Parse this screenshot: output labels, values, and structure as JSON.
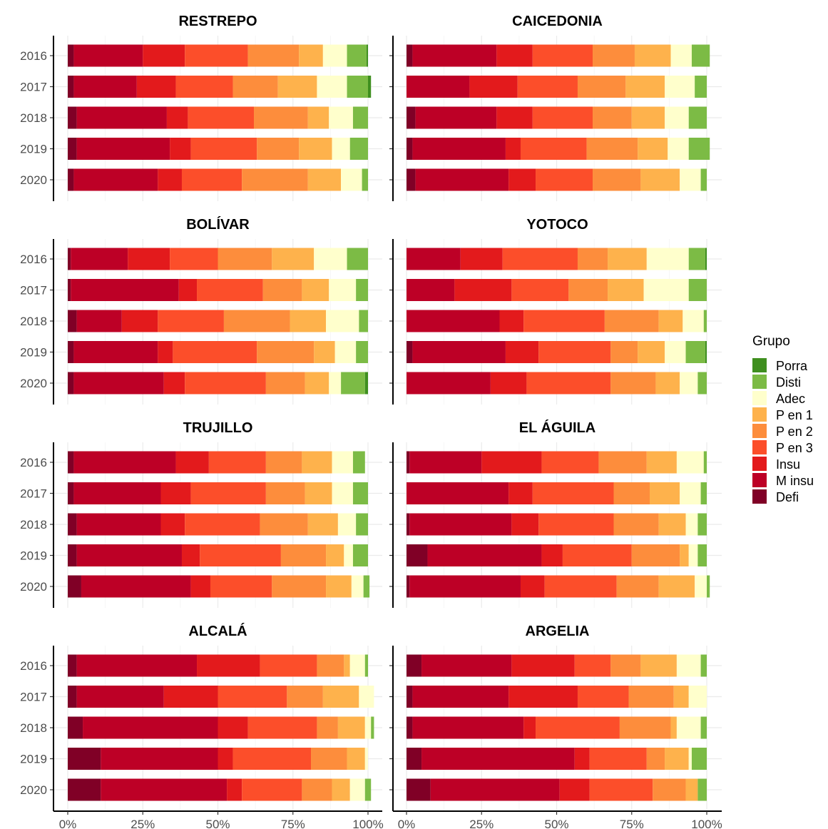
{
  "legend": {
    "title": "Grupo",
    "entries": [
      "Porra",
      "Disti",
      "Adec",
      "P en 1",
      "P en 2",
      "P en 3",
      "Insu",
      "M insu",
      "Defi"
    ]
  },
  "colors": {
    "Defi": "#800026",
    "M insu": "#bd0026",
    "Insu": "#e31a1c",
    "P en 3": "#fc4e2a",
    "P en 2": "#fd8d3c",
    "P en 1": "#feb24c",
    "Adec": "#ffffcc",
    "Disti": "#7cbb45",
    "Porra": "#3f8f1f"
  },
  "chart_data": {
    "type": "bar",
    "orientation": "horizontal",
    "stacked": true,
    "facet_layout": "4 rows x 2 columns",
    "xlim": [
      0,
      1
    ],
    "x_ticks": [
      0,
      0.25,
      0.5,
      0.75,
      1
    ],
    "x_tick_labels": [
      "0%",
      "25%",
      "50%",
      "75%",
      "100%"
    ],
    "categories": [
      "2016",
      "2017",
      "2018",
      "2019",
      "2020"
    ],
    "stack_order": [
      "Defi",
      "M insu",
      "Insu",
      "P en 3",
      "P en 2",
      "P en 1",
      "Adec",
      "Disti",
      "Porra"
    ],
    "grid": true,
    "legend_position": "right",
    "facets": [
      {
        "title": "RESTREPO",
        "rows": [
          {
            "year": "2016",
            "values": [
              0.02,
              0.23,
              0.14,
              0.21,
              0.17,
              0.08,
              0.08,
              0.065,
              0.005
            ]
          },
          {
            "year": "2017",
            "values": [
              0.02,
              0.21,
              0.13,
              0.19,
              0.15,
              0.13,
              0.1,
              0.07,
              0.01
            ]
          },
          {
            "year": "2018",
            "values": [
              0.03,
              0.3,
              0.07,
              0.22,
              0.18,
              0.07,
              0.08,
              0.05,
              0.0
            ]
          },
          {
            "year": "2019",
            "values": [
              0.03,
              0.31,
              0.07,
              0.22,
              0.14,
              0.11,
              0.06,
              0.06,
              0.0
            ]
          },
          {
            "year": "2020",
            "values": [
              0.02,
              0.28,
              0.08,
              0.2,
              0.22,
              0.11,
              0.07,
              0.02,
              0.0
            ]
          }
        ]
      },
      {
        "title": "CAICEDONIA",
        "rows": [
          {
            "year": "2016",
            "values": [
              0.02,
              0.28,
              0.12,
              0.2,
              0.14,
              0.12,
              0.07,
              0.06,
              0.0
            ]
          },
          {
            "year": "2017",
            "values": [
              0.0,
              0.21,
              0.16,
              0.2,
              0.16,
              0.13,
              0.1,
              0.04,
              0.0
            ]
          },
          {
            "year": "2018",
            "values": [
              0.03,
              0.27,
              0.12,
              0.2,
              0.13,
              0.11,
              0.08,
              0.06,
              0.0
            ]
          },
          {
            "year": "2019",
            "values": [
              0.02,
              0.31,
              0.05,
              0.22,
              0.17,
              0.1,
              0.07,
              0.07,
              0.0
            ]
          },
          {
            "year": "2020",
            "values": [
              0.03,
              0.31,
              0.09,
              0.19,
              0.16,
              0.13,
              0.07,
              0.02,
              0.0
            ]
          }
        ]
      },
      {
        "title": "BOLÍVAR",
        "rows": [
          {
            "year": "2016",
            "values": [
              0.01,
              0.19,
              0.14,
              0.16,
              0.18,
              0.14,
              0.11,
              0.07,
              0.0
            ]
          },
          {
            "year": "2017",
            "values": [
              0.01,
              0.36,
              0.06,
              0.22,
              0.13,
              0.09,
              0.09,
              0.04,
              0.0
            ]
          },
          {
            "year": "2018",
            "values": [
              0.03,
              0.15,
              0.12,
              0.22,
              0.22,
              0.12,
              0.11,
              0.03,
              0.0
            ]
          },
          {
            "year": "2019",
            "values": [
              0.02,
              0.28,
              0.05,
              0.28,
              0.19,
              0.07,
              0.07,
              0.04,
              0.0
            ]
          },
          {
            "year": "2020",
            "values": [
              0.02,
              0.3,
              0.07,
              0.27,
              0.13,
              0.08,
              0.04,
              0.08,
              0.01
            ]
          }
        ]
      },
      {
        "title": "YOTOCO",
        "rows": [
          {
            "year": "2016",
            "values": [
              0.0,
              0.18,
              0.14,
              0.25,
              0.1,
              0.13,
              0.14,
              0.055,
              0.005
            ]
          },
          {
            "year": "2017",
            "values": [
              0.0,
              0.16,
              0.19,
              0.19,
              0.13,
              0.12,
              0.15,
              0.06,
              0.0
            ]
          },
          {
            "year": "2018",
            "values": [
              0.0,
              0.31,
              0.08,
              0.27,
              0.18,
              0.08,
              0.07,
              0.01,
              0.0
            ]
          },
          {
            "year": "2019",
            "values": [
              0.02,
              0.31,
              0.11,
              0.24,
              0.09,
              0.09,
              0.07,
              0.065,
              0.005
            ]
          },
          {
            "year": "2020",
            "values": [
              0.0,
              0.28,
              0.12,
              0.28,
              0.15,
              0.08,
              0.06,
              0.03,
              0.0
            ]
          }
        ]
      },
      {
        "title": "TRUJILLO",
        "rows": [
          {
            "year": "2016",
            "values": [
              0.02,
              0.34,
              0.11,
              0.19,
              0.12,
              0.1,
              0.07,
              0.04,
              0.0
            ]
          },
          {
            "year": "2017",
            "values": [
              0.02,
              0.29,
              0.1,
              0.25,
              0.13,
              0.09,
              0.07,
              0.05,
              0.0
            ]
          },
          {
            "year": "2018",
            "values": [
              0.03,
              0.28,
              0.08,
              0.25,
              0.16,
              0.1,
              0.06,
              0.04,
              0.0
            ]
          },
          {
            "year": "2019",
            "values": [
              0.03,
              0.35,
              0.06,
              0.27,
              0.15,
              0.06,
              0.03,
              0.05,
              0.0
            ]
          },
          {
            "year": "2020",
            "values": [
              0.045,
              0.365,
              0.065,
              0.205,
              0.18,
              0.085,
              0.04,
              0.02,
              0.0
            ]
          }
        ]
      },
      {
        "title": "EL ÁGUILA",
        "rows": [
          {
            "year": "2016",
            "values": [
              0.01,
              0.24,
              0.2,
              0.19,
              0.16,
              0.1,
              0.09,
              0.01,
              0.0
            ]
          },
          {
            "year": "2017",
            "values": [
              0.0,
              0.34,
              0.08,
              0.27,
              0.12,
              0.1,
              0.07,
              0.02,
              0.0
            ]
          },
          {
            "year": "2018",
            "values": [
              0.01,
              0.34,
              0.09,
              0.25,
              0.15,
              0.09,
              0.04,
              0.03,
              0.0
            ]
          },
          {
            "year": "2019",
            "values": [
              0.07,
              0.38,
              0.07,
              0.23,
              0.16,
              0.03,
              0.03,
              0.03,
              0.0
            ]
          },
          {
            "year": "2020",
            "values": [
              0.01,
              0.37,
              0.08,
              0.24,
              0.14,
              0.12,
              0.04,
              0.01,
              0.0
            ]
          }
        ]
      },
      {
        "title": "ALCALÁ",
        "rows": [
          {
            "year": "2016",
            "values": [
              0.03,
              0.4,
              0.21,
              0.19,
              0.09,
              0.02,
              0.05,
              0.01,
              0.0
            ]
          },
          {
            "year": "2017",
            "values": [
              0.03,
              0.29,
              0.18,
              0.23,
              0.12,
              0.12,
              0.05,
              0.0,
              0.0
            ]
          },
          {
            "year": "2018",
            "values": [
              0.05,
              0.45,
              0.1,
              0.23,
              0.07,
              0.09,
              0.02,
              0.01,
              0.0
            ]
          },
          {
            "year": "2019",
            "values": [
              0.11,
              0.39,
              0.05,
              0.26,
              0.12,
              0.06,
              0.01,
              0.0,
              0.0
            ]
          },
          {
            "year": "2020",
            "values": [
              0.11,
              0.42,
              0.05,
              0.2,
              0.1,
              0.06,
              0.05,
              0.02,
              0.0
            ]
          }
        ]
      },
      {
        "title": "ARGELIA",
        "rows": [
          {
            "year": "2016",
            "values": [
              0.05,
              0.3,
              0.21,
              0.12,
              0.1,
              0.12,
              0.08,
              0.02,
              0.0
            ]
          },
          {
            "year": "2017",
            "values": [
              0.02,
              0.32,
              0.23,
              0.17,
              0.15,
              0.05,
              0.06,
              0.0,
              0.0
            ]
          },
          {
            "year": "2018",
            "values": [
              0.02,
              0.37,
              0.04,
              0.28,
              0.17,
              0.02,
              0.08,
              0.02,
              0.0
            ]
          },
          {
            "year": "2019",
            "values": [
              0.05,
              0.51,
              0.05,
              0.19,
              0.06,
              0.08,
              0.01,
              0.05,
              0.0
            ]
          },
          {
            "year": "2020",
            "values": [
              0.08,
              0.43,
              0.1,
              0.21,
              0.11,
              0.04,
              0.0,
              0.03,
              0.0
            ]
          }
        ]
      }
    ]
  }
}
